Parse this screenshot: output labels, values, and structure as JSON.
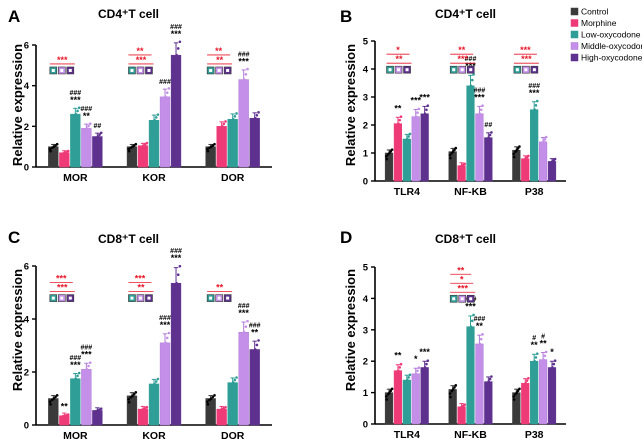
{
  "legend": {
    "entries": [
      {
        "label": "Control",
        "color": "#3a3a3a"
      },
      {
        "label": "Morphine",
        "color": "#ef3a78"
      },
      {
        "label": "Low-oxycodone",
        "color": "#2e9e97"
      },
      {
        "label": "Middle-oxycodone",
        "color": "#c48fe8"
      },
      {
        "label": "High-oxycodone",
        "color": "#5e318f"
      }
    ]
  },
  "chart_data": [
    {
      "type": "bar",
      "panel": "A",
      "title": "CD4⁺T cell",
      "ylabel": "Relative expression",
      "ylim": [
        0,
        6
      ],
      "yticks": [
        "0",
        "2",
        "4",
        "6"
      ],
      "categories": [
        "MOR",
        "KOR",
        "DOR"
      ],
      "series": [
        {
          "name": "Control",
          "values": [
            1.0,
            1.0,
            1.0
          ]
        },
        {
          "name": "Morphine",
          "values": [
            0.7,
            1.05,
            2.0
          ]
        },
        {
          "name": "Low-oxycodone",
          "values": [
            2.6,
            2.3,
            2.35
          ]
        },
        {
          "name": "Middle-oxycodone",
          "values": [
            1.9,
            3.45,
            4.3
          ]
        },
        {
          "name": "High-oxycodone",
          "values": [
            1.5,
            5.5,
            2.4
          ]
        }
      ],
      "annotations": [
        {
          "cat": 0,
          "bar": 2,
          "lines": [
            "###",
            "***"
          ]
        },
        {
          "cat": 0,
          "bar": 3,
          "lines": [
            "###",
            "**"
          ]
        },
        {
          "cat": 0,
          "bar": 4,
          "lines": [
            "##"
          ]
        },
        {
          "cat": 1,
          "bar": 3,
          "lines": [
            "###"
          ]
        },
        {
          "cat": 1,
          "bar": 4,
          "lines": [
            "###",
            "***"
          ]
        },
        {
          "cat": 2,
          "bar": 3,
          "lines": [
            "###",
            "***"
          ]
        }
      ],
      "comparisons": [
        {
          "cat": 0,
          "labels": [
            "***"
          ]
        },
        {
          "cat": 1,
          "labels": [
            "***",
            "**"
          ]
        },
        {
          "cat": 2,
          "labels": [
            "**",
            "**"
          ]
        }
      ]
    },
    {
      "type": "bar",
      "panel": "B",
      "title": "CD4⁺T cell",
      "ylabel": "Relative expression",
      "ylim": [
        0,
        5
      ],
      "yticks": [
        "0",
        "1",
        "2",
        "3",
        "4",
        "5"
      ],
      "categories": [
        "TLR4",
        "NF-KB",
        "P38"
      ],
      "series": [
        {
          "name": "Control",
          "values": [
            1.0,
            1.05,
            1.1
          ]
        },
        {
          "name": "Morphine",
          "values": [
            2.05,
            0.55,
            0.8
          ]
        },
        {
          "name": "Low-oxycodone",
          "values": [
            1.5,
            3.4,
            2.55
          ]
        },
        {
          "name": "Middle-oxycodone",
          "values": [
            2.3,
            2.4,
            1.4
          ]
        },
        {
          "name": "High-oxycodone",
          "values": [
            2.4,
            1.55,
            0.7
          ]
        }
      ],
      "annotations": [
        {
          "cat": 0,
          "bar": 1,
          "lines": [
            "**"
          ]
        },
        {
          "cat": 0,
          "bar": 3,
          "lines": [
            "***"
          ]
        },
        {
          "cat": 0,
          "bar": 4,
          "lines": [
            "***"
          ]
        },
        {
          "cat": 1,
          "bar": 2,
          "lines": [
            "###",
            "***"
          ]
        },
        {
          "cat": 1,
          "bar": 3,
          "lines": [
            "###",
            "***"
          ]
        },
        {
          "cat": 1,
          "bar": 4,
          "lines": [
            "##"
          ]
        },
        {
          "cat": 2,
          "bar": 2,
          "lines": [
            "###",
            "***"
          ]
        }
      ],
      "comparisons": [
        {
          "cat": 0,
          "labels": [
            "**",
            "*"
          ]
        },
        {
          "cat": 1,
          "labels": [
            "***",
            "**"
          ]
        },
        {
          "cat": 2,
          "labels": [
            "***",
            "***"
          ]
        }
      ]
    },
    {
      "type": "bar",
      "panel": "C",
      "title": "CD8⁺T cell",
      "ylabel": "Relative expression",
      "ylim": [
        0,
        6
      ],
      "yticks": [
        "0",
        "2",
        "4",
        "6"
      ],
      "categories": [
        "MOR",
        "KOR",
        "DOR"
      ],
      "series": [
        {
          "name": "Control",
          "values": [
            1.0,
            1.1,
            1.0
          ]
        },
        {
          "name": "Morphine",
          "values": [
            0.35,
            0.6,
            0.6
          ]
        },
        {
          "name": "Low-oxycodone",
          "values": [
            1.75,
            1.55,
            1.6
          ]
        },
        {
          "name": "Middle-oxycodone",
          "values": [
            2.1,
            3.1,
            3.5
          ]
        },
        {
          "name": "High-oxycodone",
          "values": [
            0.55,
            5.35,
            2.85
          ]
        }
      ],
      "annotations": [
        {
          "cat": 0,
          "bar": 1,
          "lines": [
            "**"
          ]
        },
        {
          "cat": 0,
          "bar": 2,
          "lines": [
            "###",
            "***"
          ]
        },
        {
          "cat": 0,
          "bar": 3,
          "lines": [
            "###",
            "***"
          ]
        },
        {
          "cat": 1,
          "bar": 3,
          "lines": [
            "###",
            "***"
          ]
        },
        {
          "cat": 1,
          "bar": 4,
          "lines": [
            "###",
            "***"
          ]
        },
        {
          "cat": 2,
          "bar": 3,
          "lines": [
            "###",
            "***"
          ]
        },
        {
          "cat": 2,
          "bar": 4,
          "lines": [
            "###",
            "**"
          ]
        }
      ],
      "comparisons": [
        {
          "cat": 0,
          "labels": [
            "***",
            "***"
          ]
        },
        {
          "cat": 1,
          "labels": [
            "**",
            "***"
          ]
        },
        {
          "cat": 2,
          "labels": [
            "**"
          ]
        }
      ]
    },
    {
      "type": "bar",
      "panel": "D",
      "title": "CD8⁺T cell",
      "ylabel": "Relative expression",
      "ylim": [
        0,
        5
      ],
      "yticks": [
        "0",
        "1",
        "2",
        "3",
        "4",
        "5"
      ],
      "categories": [
        "TLR4",
        "NF-KB",
        "P38"
      ],
      "series": [
        {
          "name": "Control",
          "values": [
            1.0,
            1.1,
            1.0
          ]
        },
        {
          "name": "Morphine",
          "values": [
            1.7,
            0.55,
            1.3
          ]
        },
        {
          "name": "Low-oxycodone",
          "values": [
            1.4,
            3.1,
            2.0
          ]
        },
        {
          "name": "Middle-oxycodone",
          "values": [
            1.6,
            2.55,
            2.05
          ]
        },
        {
          "name": "High-oxycodone",
          "values": [
            1.8,
            1.35,
            1.8
          ]
        }
      ],
      "annotations": [
        {
          "cat": 0,
          "bar": 1,
          "lines": [
            "**"
          ]
        },
        {
          "cat": 0,
          "bar": 3,
          "lines": [
            "*"
          ]
        },
        {
          "cat": 0,
          "bar": 4,
          "lines": [
            "***"
          ]
        },
        {
          "cat": 1,
          "bar": 2,
          "lines": [
            "###",
            "***"
          ]
        },
        {
          "cat": 1,
          "bar": 3,
          "lines": [
            "###",
            "**"
          ]
        },
        {
          "cat": 2,
          "bar": 2,
          "lines": [
            "#",
            "**"
          ]
        },
        {
          "cat": 2,
          "bar": 3,
          "lines": [
            "#",
            "**"
          ]
        },
        {
          "cat": 2,
          "bar": 4,
          "lines": [
            "*"
          ]
        }
      ],
      "comparisons": [
        {
          "cat": 1,
          "labels": [
            "***",
            "*",
            "**"
          ]
        }
      ]
    }
  ]
}
